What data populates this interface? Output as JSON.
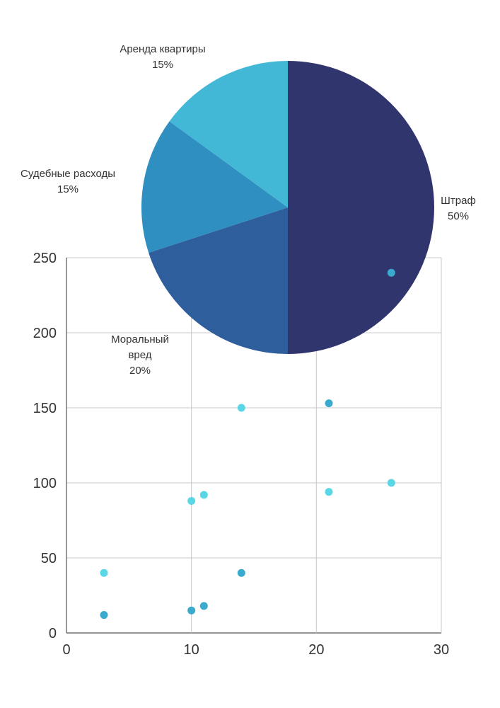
{
  "chart_data": [
    {
      "type": "scatter",
      "title": "",
      "xlabel": "",
      "ylabel": "",
      "xlim": [
        0,
        30
      ],
      "ylim": [
        0,
        250
      ],
      "x_ticks": [
        "0",
        "10",
        "20",
        "30"
      ],
      "y_ticks": [
        "0",
        "50",
        "100",
        "150",
        "200",
        "250"
      ],
      "grid": true,
      "series": [
        {
          "color": "#5ad7e6",
          "points": [
            [
              3,
              40
            ],
            [
              10,
              88
            ],
            [
              11,
              92
            ],
            [
              14,
              150
            ],
            [
              21,
              94
            ],
            [
              26,
              100
            ]
          ]
        },
        {
          "color": "#3aaacf",
          "points": [
            [
              3,
              12
            ],
            [
              10,
              15
            ],
            [
              11,
              18
            ],
            [
              14,
              40
            ],
            [
              21,
              153
            ],
            [
              26,
              240
            ]
          ]
        }
      ]
    },
    {
      "type": "pie",
      "title": "",
      "slices": [
        {
          "label": "Штраф",
          "value": 50,
          "pct": "50%",
          "color": "#31356d"
        },
        {
          "label": "Моральный вред",
          "value": 20,
          "pct": "20%",
          "color": "#2f5e9c"
        },
        {
          "label": "Судебные расходы",
          "value": 15,
          "pct": "15%",
          "color": "#2e8fc0"
        },
        {
          "label": "Аренда квартиры",
          "value": 15,
          "pct": "15%",
          "color": "#42b7d6"
        }
      ]
    }
  ]
}
